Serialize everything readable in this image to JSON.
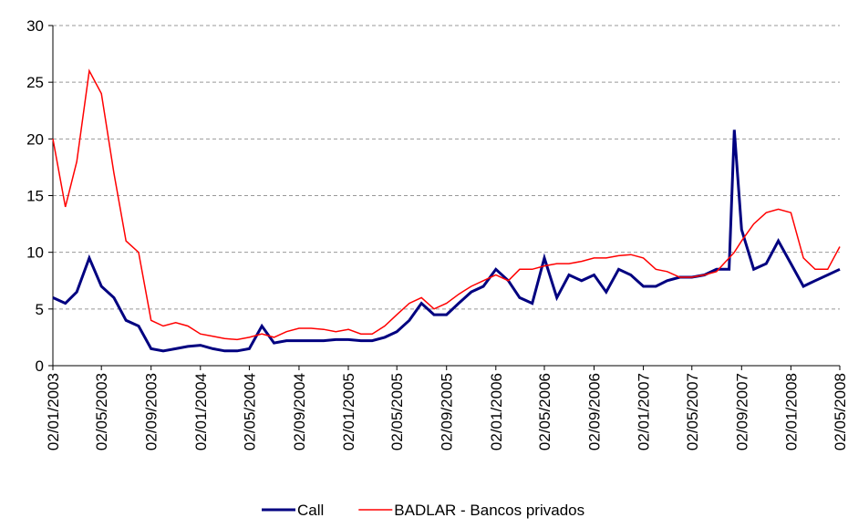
{
  "chart_data": {
    "type": "line",
    "x": [
      "02/01/2003",
      "02/02/2003",
      "02/03/2003",
      "02/04/2003",
      "02/05/2003",
      "02/06/2003",
      "02/07/2003",
      "02/08/2003",
      "02/09/2003",
      "02/10/2003",
      "02/11/2003",
      "02/12/2003",
      "02/01/2004",
      "02/02/2004",
      "02/03/2004",
      "02/04/2004",
      "02/05/2004",
      "02/06/2004",
      "02/07/2004",
      "02/08/2004",
      "02/09/2004",
      "02/10/2004",
      "02/11/2004",
      "02/12/2004",
      "02/01/2005",
      "02/02/2005",
      "02/03/2005",
      "02/04/2005",
      "02/05/2005",
      "02/06/2005",
      "02/07/2005",
      "02/08/2005",
      "02/09/2005",
      "02/10/2005",
      "02/11/2005",
      "02/12/2005",
      "02/01/2006",
      "02/02/2006",
      "02/03/2006",
      "02/04/2006",
      "02/05/2006",
      "02/06/2006",
      "02/07/2006",
      "02/08/2006",
      "02/09/2006",
      "02/10/2006",
      "02/11/2006",
      "02/12/2006",
      "02/01/2007",
      "02/02/2007",
      "02/03/2007",
      "02/04/2007",
      "02/05/2007",
      "02/06/2007",
      "02/07/2007",
      "02/08/2007",
      "15/08/2007",
      "02/09/2007",
      "02/10/2007",
      "02/11/2007",
      "02/12/2007",
      "02/01/2008",
      "02/02/2008",
      "02/03/2008",
      "02/04/2008",
      "02/05/2008"
    ],
    "series": [
      {
        "name": "Call",
        "color": "#000080",
        "values": [
          6,
          5.5,
          6.5,
          9.5,
          7,
          6,
          4,
          3.5,
          1.5,
          1.3,
          1.5,
          1.7,
          1.8,
          1.5,
          1.3,
          1.3,
          1.5,
          3.5,
          2,
          2.2,
          2.2,
          2.2,
          2.2,
          2.3,
          2.3,
          2.2,
          2.2,
          2.5,
          3,
          4,
          5.5,
          4.5,
          4.5,
          5.5,
          6.5,
          7,
          8.5,
          7.5,
          6,
          5.5,
          9.5,
          6,
          8,
          7.5,
          8,
          6.5,
          8.5,
          8,
          7,
          7,
          7.5,
          7.8,
          7.8,
          8,
          8.5,
          8.5,
          20.8,
          12,
          8.5,
          9,
          11,
          9,
          7,
          7.5,
          8,
          8.5
        ]
      },
      {
        "name": "BADLAR - Bancos privados",
        "color": "#ff0000",
        "values": [
          20,
          14,
          18,
          26,
          24,
          17,
          11,
          10,
          4,
          3.5,
          3.8,
          3.5,
          2.8,
          2.6,
          2.4,
          2.3,
          2.5,
          2.8,
          2.5,
          3,
          3.3,
          3.3,
          3.2,
          3,
          3.2,
          2.8,
          2.8,
          3.5,
          4.5,
          5.5,
          6,
          5,
          5.5,
          6.3,
          7,
          7.5,
          8,
          7.5,
          8.5,
          8.5,
          8.8,
          9,
          9,
          9.2,
          9.5,
          9.5,
          9.7,
          9.8,
          9.5,
          8.5,
          8.3,
          7.8,
          7.8,
          8,
          8.3,
          9.5,
          10,
          11,
          12.5,
          13.5,
          13.8,
          13.5,
          9.5,
          8.5,
          8.5,
          10.5
        ]
      }
    ],
    "xlim": [
      "02/01/2003",
      "02/05/2008"
    ],
    "xticks": [
      "02/01/2003",
      "02/05/2003",
      "02/09/2003",
      "02/01/2004",
      "02/05/2004",
      "02/09/2004",
      "02/01/2005",
      "02/05/2005",
      "02/09/2005",
      "02/01/2006",
      "02/05/2006",
      "02/09/2006",
      "02/01/2007",
      "02/05/2007",
      "02/09/2007",
      "02/01/2008",
      "02/05/2008"
    ],
    "ylim": [
      0,
      30
    ],
    "yticks": [
      0,
      5,
      10,
      15,
      20,
      25,
      30
    ],
    "grid": true,
    "legend": "bottom"
  }
}
